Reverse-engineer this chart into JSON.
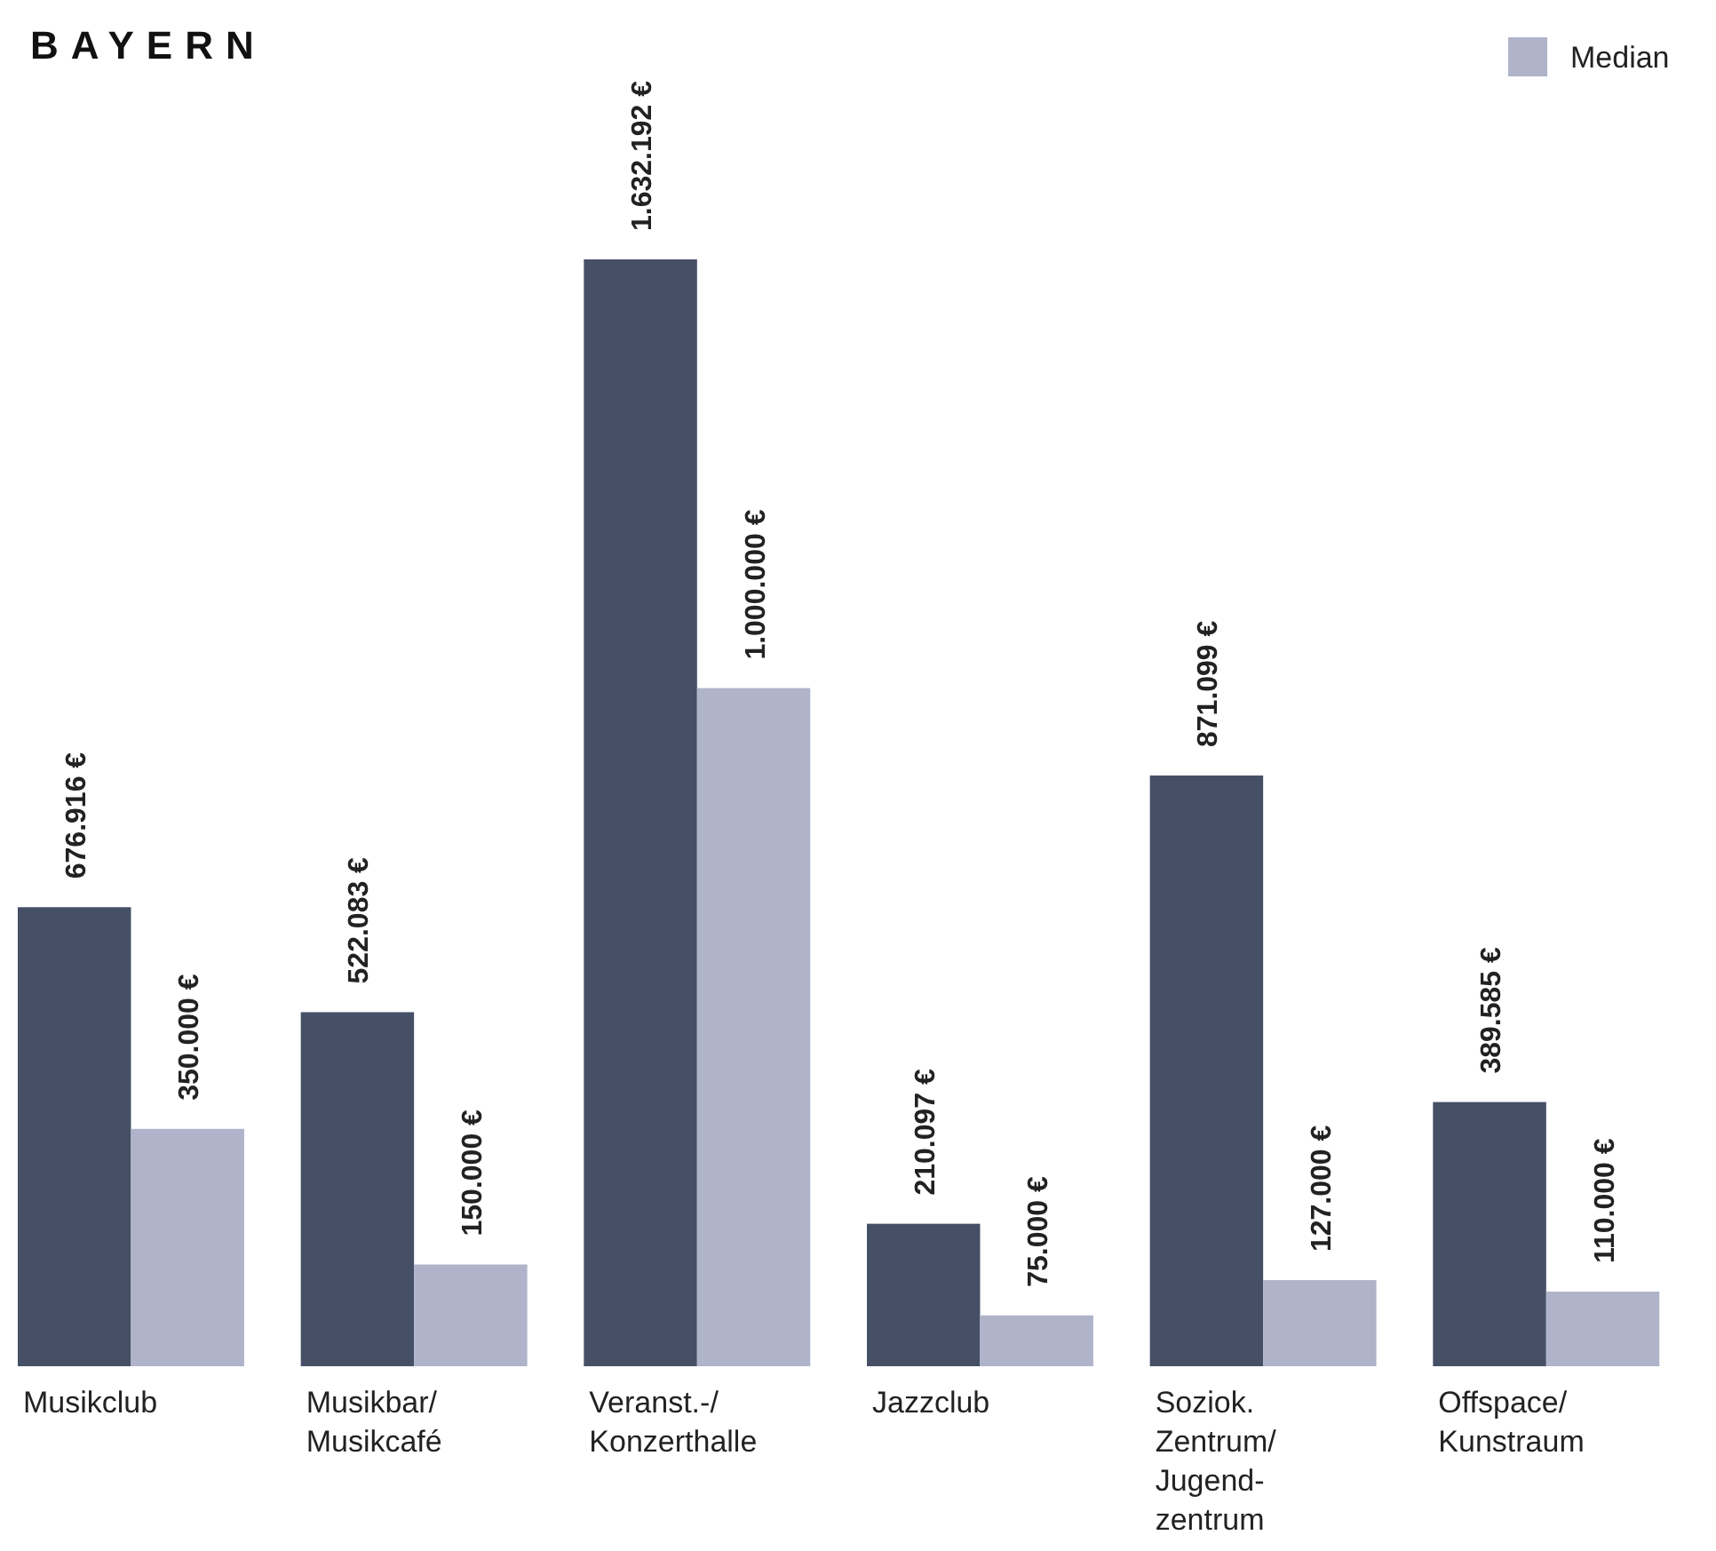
{
  "chart_data": {
    "type": "bar",
    "title": "BAYERN",
    "categories": [
      "Musikclub",
      "Musikbar/\nMusikcafé",
      "Veranst.-/\nKonzerthalle",
      "Jazzclub",
      "Soziok.\nZentrum/\nJugend-\nzentrum",
      "Offspace/\nKunstraum"
    ],
    "series": [
      {
        "color": "#454f66",
        "values": [
          676916,
          522083,
          1632192,
          210097,
          871099,
          389585
        ],
        "value_labels": [
          "676.916 €",
          "522.083 €",
          "1.632.192 €",
          "210.097 €",
          "871.099 €",
          "389.585 €"
        ]
      },
      {
        "name": "Median",
        "color": "#afb4cb",
        "values": [
          350000,
          150000,
          1000000,
          75000,
          127000,
          110000
        ],
        "value_labels": [
          "350.000 €",
          "150.000 €",
          "1.000.000 €",
          "75.000 €",
          "127.000 €",
          "110.000 €"
        ]
      }
    ],
    "legend": "top right"
  }
}
